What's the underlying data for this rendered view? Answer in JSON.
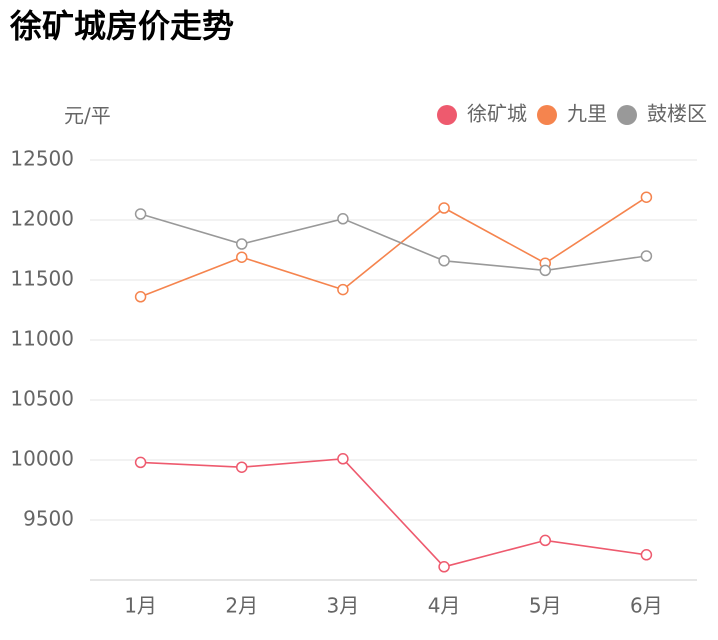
{
  "chart_data": {
    "type": "line",
    "title": "徐矿城房价走势",
    "y_label": "元/平",
    "categories": [
      "1月",
      "2月",
      "3月",
      "4月",
      "5月",
      "6月"
    ],
    "series": [
      {
        "name": "徐矿城",
        "color": "#ee5a6e",
        "values": [
          9980,
          9940,
          10010,
          9110,
          9330,
          9210
        ]
      },
      {
        "name": "九里",
        "color": "#f5844e",
        "values": [
          11360,
          11690,
          11420,
          12100,
          11640,
          12190
        ]
      },
      {
        "name": "鼓楼区",
        "color": "#999999",
        "values": [
          12050,
          11800,
          12010,
          11660,
          11580,
          11700
        ]
      }
    ],
    "ylim": [
      9000,
      12500
    ],
    "yticks": [
      9500,
      10000,
      10500,
      11000,
      11500,
      12000,
      12500
    ],
    "grid": true,
    "legend": "top-right"
  }
}
